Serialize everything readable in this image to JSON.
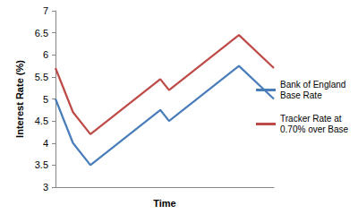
{
  "chart_data": {
    "type": "line",
    "x_label": "Time",
    "y_label": "Interest Rate (%)",
    "x": [
      0,
      1,
      2,
      6,
      6.5,
      10.5,
      12.5
    ],
    "series": [
      {
        "name": "Bank of England Base Rate",
        "color": "#4a7ebb",
        "values": [
          5,
          4,
          3.5,
          4.75,
          4.5,
          5.75,
          5
        ]
      },
      {
        "name": "Tracker Rate at 0.70% over Base",
        "color": "#be4b48",
        "values": [
          5.7,
          4.7,
          4.2,
          5.45,
          5.2,
          6.45,
          5.7
        ]
      }
    ],
    "xlim": [
      0,
      12.5
    ],
    "xticks": [],
    "ylim": [
      3,
      7
    ],
    "yticks": [
      3,
      3.5,
      4,
      4.5,
      5,
      5.5,
      6,
      6.5,
      7
    ],
    "grid": false,
    "legend": "right",
    "tick_labels": "y",
    "marker": "none"
  }
}
